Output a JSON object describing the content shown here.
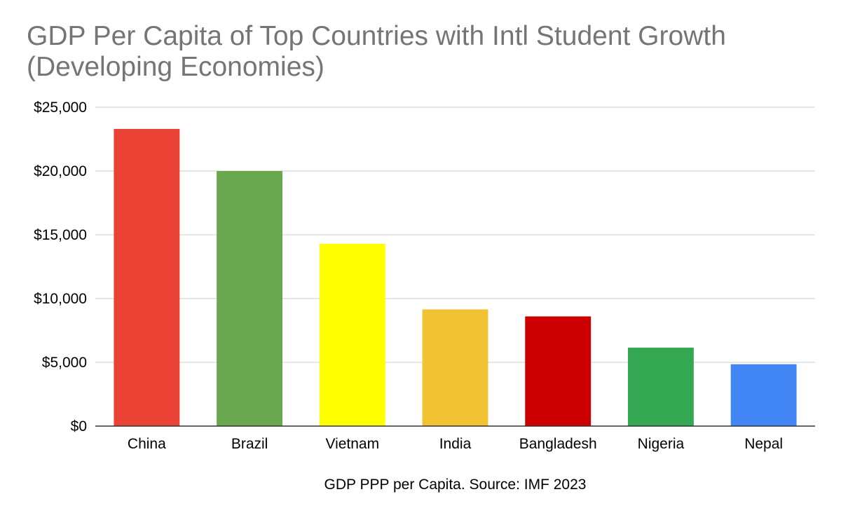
{
  "chart_data": {
    "type": "bar",
    "title": "GDP Per Capita of Top Countries with Intl Student Growth (Developing Economies)",
    "xlabel": "GDP PPP per Capita. Source: IMF 2023",
    "ylabel": "",
    "categories": [
      "China",
      "Brazil",
      "Vietnam",
      "India",
      "Bangladesh",
      "Nigeria",
      "Nepal"
    ],
    "values": [
      23300,
      20000,
      14300,
      9150,
      8600,
      6150,
      4850
    ],
    "colors": [
      "#ea4335",
      "#6aa84f",
      "#ffff00",
      "#f1c232",
      "#cc0000",
      "#34a853",
      "#4285f4"
    ],
    "ylim": [
      0,
      25000
    ],
    "yticks": [
      0,
      5000,
      10000,
      15000,
      20000,
      25000
    ],
    "ytick_labels": [
      "$0",
      "$5,000",
      "$10,000",
      "$15,000",
      "$20,000",
      "$25,000"
    ],
    "grid": true,
    "legend": "none"
  }
}
